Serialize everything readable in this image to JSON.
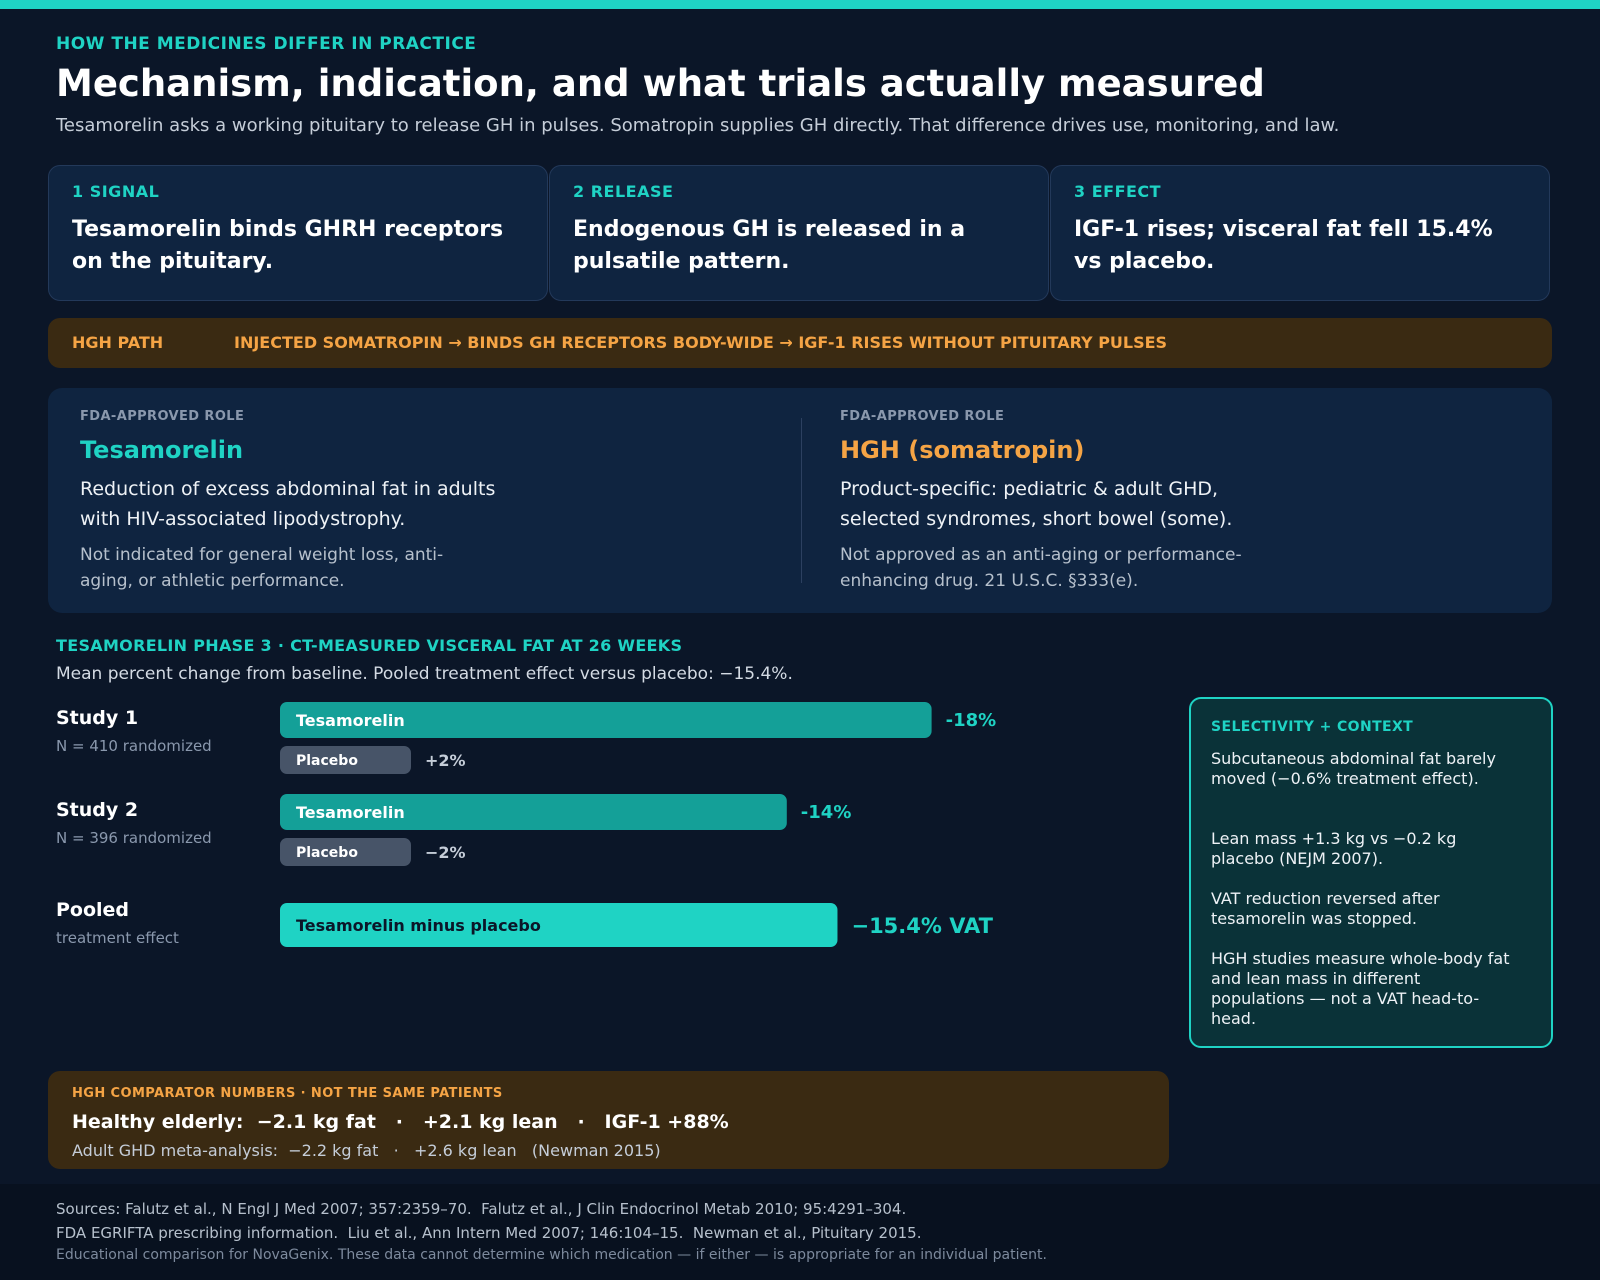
{
  "header": {
    "eyebrow": "HOW THE MEDICINES DIFFER IN PRACTICE",
    "title": "Mechanism, indication, and what trials actually measured",
    "subtitle": "Tesamorelin asks a working pituitary to release GH in pulses. Somatropin supplies GH directly. That difference drives use, monitoring, and law."
  },
  "steps": [
    {
      "num": "1  SIGNAL",
      "text": "Tesamorelin binds GHRH receptors on the pituitary."
    },
    {
      "num": "2  RELEASE",
      "text": "Endogenous GH is released in a pulsatile pattern."
    },
    {
      "num": "3  EFFECT",
      "text": "IGF-1 rises; visceral fat fell 15.4% vs placebo."
    }
  ],
  "hgh_path": {
    "label": "HGH PATH",
    "flow": "INJECTED SOMATROPIN  →  BINDS GH RECEPTORS BODY-WIDE  →  IGF-1 RISES WITHOUT PITUITARY PULSES"
  },
  "roles": [
    {
      "kicker": "FDA-APPROVED ROLE",
      "name": "Tesamorelin",
      "desc": "Reduction of excess abdominal fat in adults with HIV-associated lipodystrophy.",
      "note": "Not indicated for general weight loss, anti-aging, or athletic performance."
    },
    {
      "kicker": "FDA-APPROVED ROLE",
      "name": "HGH (somatropin)",
      "desc": "Product-specific: pediatric & adult GHD, selected syndromes, short bowel (some).",
      "note": "Not approved as an anti-aging or performance-enhancing drug.  21 U.S.C. §333(e)."
    }
  ],
  "colors": {
    "teal": "#1fd3c4",
    "teal_dark": "#14a098",
    "orange": "#f5a445",
    "placebo": "#475468"
  },
  "chart_section": {
    "title": "TESAMORELIN PHASE 3  ·  CT-MEASURED VISCERAL FAT AT 26 WEEKS",
    "subtitle": "Mean percent change from baseline. Pooled treatment effect versus placebo: −15.4%."
  },
  "chart_data": {
    "type": "bar",
    "orientation": "horizontal",
    "unit": "% change in visceral fat",
    "groups": [
      {
        "name": "Study 1",
        "note": "N = 410 randomized",
        "bars": [
          {
            "series": "Tesamorelin",
            "value": -18,
            "label": "-18%"
          },
          {
            "series": "Placebo",
            "value": 2,
            "label": "+2%"
          }
        ]
      },
      {
        "name": "Study 2",
        "note": "N = 396 randomized",
        "bars": [
          {
            "series": "Tesamorelin",
            "value": -14,
            "label": "-14%"
          },
          {
            "series": "Placebo",
            "value": -2,
            "label": "−2%"
          }
        ]
      },
      {
        "name": "Pooled",
        "note": "treatment effect",
        "bars": [
          {
            "series": "Tesamorelin minus placebo",
            "value": -15.4,
            "label": "−15.4% VAT"
          }
        ]
      }
    ]
  },
  "context": {
    "title": "SELECTIVITY + CONTEXT",
    "items": [
      "Subcutaneous abdominal fat barely moved (−0.6% treatment effect).",
      "Lean mass +1.3 kg vs −0.2 kg placebo (NEJM 2007).",
      "VAT reduction reversed after tesamorelin was stopped.",
      "HGH studies measure whole-body fat and lean mass in different populations — not a VAT head-to-head."
    ]
  },
  "comparator": {
    "title": "HGH COMPARATOR NUMBERS  ·  NOT THE SAME PATIENTS",
    "main": "Healthy elderly:  −2.1 kg fat   ·   +2.1 kg lean   ·   IGF-1 +88%",
    "sub": "Adult GHD meta-analysis:  −2.2 kg fat   ·   +2.6 kg lean   (Newman 2015)"
  },
  "footer": {
    "line1": "Sources: Falutz et al., N Engl J Med 2007; 357:2359–70.  Falutz et al., J Clin Endocrinol Metab 2010; 95:4291–304.",
    "line2": "FDA EGRIFTA prescribing information.  Liu et al., Ann Intern Med 2007; 146:104–15.  Newman et al., Pituitary 2015.",
    "line3": "Educational comparison for NovaGenix. These data cannot determine which medication — if either — is appropriate for an individual patient."
  }
}
